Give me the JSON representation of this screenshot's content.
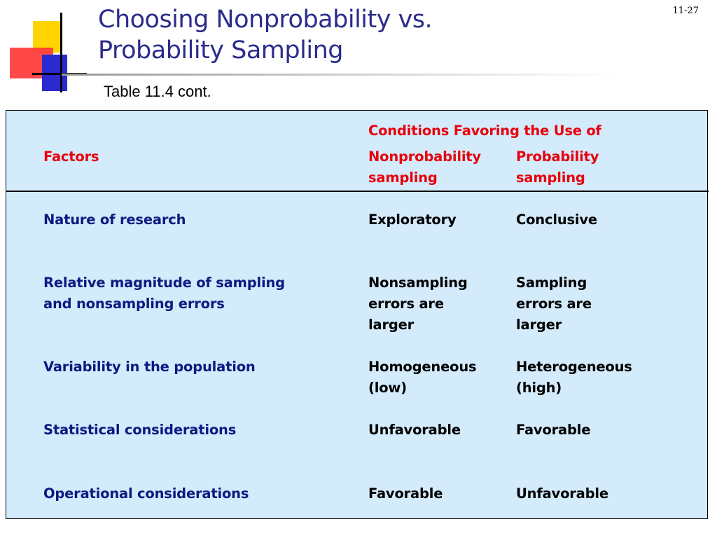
{
  "slide": {
    "title": "Choosing Nonprobability vs.\nProbability Sampling",
    "number": "11-27",
    "subtitle": "Table 11.4 cont.",
    "colors": {
      "title": "#2c2c8c",
      "header_text": "#e8000c",
      "factor_text": "#0c1a80",
      "table_bg": "#d3ebfb"
    }
  },
  "table": {
    "group_header": "Conditions Favoring the Use of",
    "columns": {
      "factors": "Factors",
      "nonprob": "Nonprobability\nsampling",
      "prob": "Probability\nsampling"
    },
    "rows": [
      {
        "factor": "Nature of research",
        "nonprob": "Exploratory",
        "prob": "Conclusive"
      },
      {
        "factor": "Relative magnitude of sampling\nand nonsampling errors",
        "nonprob": "Nonsampling\nerrors are\nlarger",
        "prob": "Sampling\nerrors are\nlarger"
      },
      {
        "factor": "Variability in the population",
        "nonprob": "Homogeneous\n(low)",
        "prob": "Heterogeneous\n(high)"
      },
      {
        "factor": "Statistical considerations",
        "nonprob": "Unfavorable",
        "prob": "Favorable"
      },
      {
        "factor": "Operational considerations",
        "nonprob": "Favorable",
        "prob": "Unfavorable"
      }
    ]
  }
}
